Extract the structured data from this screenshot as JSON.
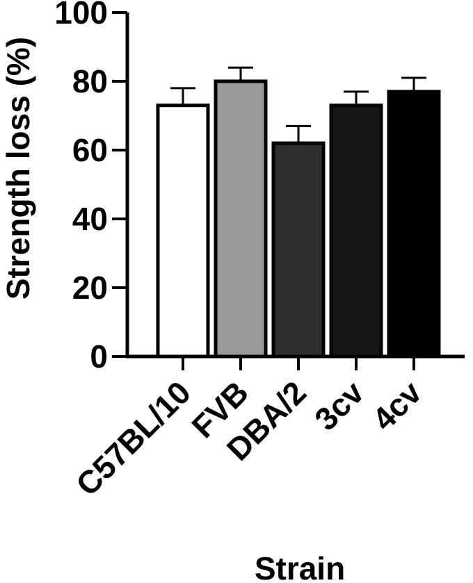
{
  "chart_data": {
    "type": "bar",
    "title": "",
    "xlabel": "Strain",
    "ylabel": "Strength loss (%)",
    "ylim": [
      0,
      100
    ],
    "yticks": [
      0,
      20,
      40,
      60,
      80,
      100
    ],
    "grid": false,
    "categories": [
      "C57BL/10",
      "FVB",
      "DBA/2",
      "3cv",
      "4cv"
    ],
    "values": [
      73,
      80,
      62,
      73,
      77
    ],
    "errors": [
      5,
      4,
      5,
      4,
      4
    ],
    "bar_colors": [
      "#ffffff",
      "#9a9a9a",
      "#2e2e2e",
      "#161616",
      "#000000"
    ],
    "edge_color": "#000000"
  }
}
